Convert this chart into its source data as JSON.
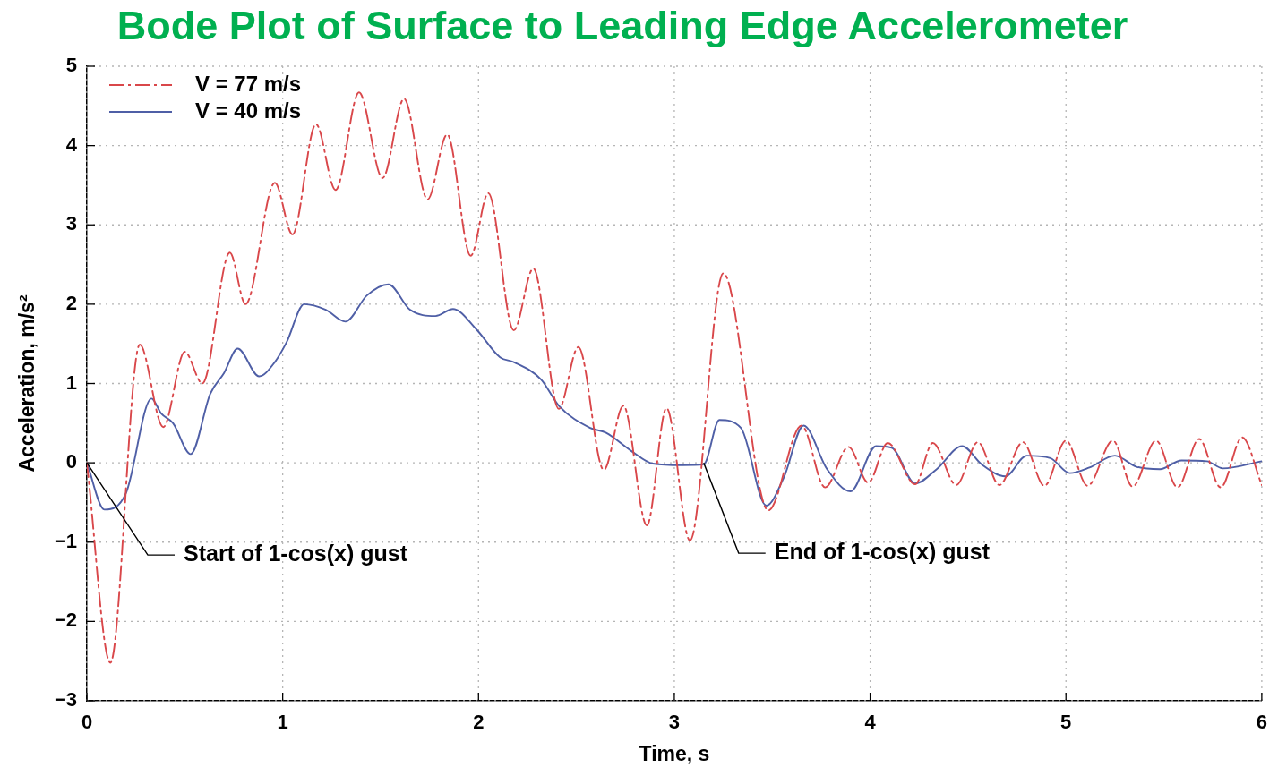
{
  "chart_data": {
    "type": "line",
    "title": "Bode Plot of Surface to Leading Edge Accelerometer",
    "xlabel": "Time, s",
    "ylabel": "Acceleration, m/s²",
    "xlim": [
      0,
      6
    ],
    "xticks": [
      0,
      1,
      2,
      3,
      4,
      5,
      6
    ],
    "ylim": [
      -3,
      5
    ],
    "yticks": [
      {
        "value": -3,
        "label": "−3"
      },
      {
        "value": -2,
        "label": "−2"
      },
      {
        "value": -1,
        "label": "−1"
      },
      0,
      1,
      2,
      3,
      4,
      5
    ],
    "grid": true,
    "legend": "top left",
    "marker": "none",
    "series": [
      {
        "name": "V = 77 m/s",
        "color": "#d9474a",
        "line_style": "dashed",
        "x": [
          0,
          0.12,
          0.27,
          0.39,
          0.5,
          0.59,
          0.73,
          0.81,
          0.96,
          1.05,
          1.17,
          1.27,
          1.39,
          1.51,
          1.62,
          1.74,
          1.84,
          1.96,
          2.05,
          2.18,
          2.28,
          2.41,
          2.51,
          2.64,
          2.74,
          2.86,
          2.96,
          3.08,
          3.25,
          3.48,
          3.65,
          3.77,
          3.89,
          3.99,
          4.09,
          4.23,
          4.32,
          4.44,
          4.55,
          4.66,
          4.78,
          4.89,
          5.0,
          5.11,
          5.24,
          5.34,
          5.46,
          5.57,
          5.68,
          5.79,
          5.9,
          6.0
        ],
        "values": [
          0,
          -2.52,
          1.49,
          0.45,
          1.4,
          1.0,
          2.65,
          2.0,
          3.53,
          2.88,
          4.27,
          3.44,
          4.67,
          3.59,
          4.59,
          3.32,
          4.14,
          2.61,
          3.4,
          1.67,
          2.45,
          0.68,
          1.46,
          -0.09,
          0.72,
          -0.79,
          0.69,
          -0.98,
          2.39,
          -0.6,
          0.47,
          -0.31,
          0.2,
          -0.25,
          0.25,
          -0.27,
          0.25,
          -0.28,
          0.26,
          -0.28,
          0.26,
          -0.29,
          0.28,
          -0.29,
          0.28,
          -0.3,
          0.28,
          -0.31,
          0.3,
          -0.31,
          0.32,
          -0.28
        ]
      },
      {
        "name": "V = 40 m/s",
        "color": "#4f5fa6",
        "line_style": "solid",
        "x": [
          0,
          0.09,
          0.2,
          0.33,
          0.38,
          0.44,
          0.53,
          0.63,
          0.7,
          0.77,
          0.88,
          0.96,
          1.02,
          1.11,
          1.22,
          1.32,
          1.43,
          1.54,
          1.65,
          1.78,
          1.87,
          1.99,
          2.11,
          2.18,
          2.32,
          2.41,
          2.57,
          2.65,
          2.78,
          2.89,
          3.04,
          3.15,
          3.23,
          3.34,
          3.47,
          3.56,
          3.66,
          3.78,
          3.9,
          4.03,
          4.11,
          4.23,
          4.34,
          4.47,
          4.57,
          4.69,
          4.8,
          4.92,
          5.02,
          5.12,
          5.25,
          5.36,
          5.48,
          5.59,
          5.72,
          5.8,
          6.0
        ],
        "values": [
          0,
          -0.59,
          -0.38,
          0.81,
          0.62,
          0.5,
          0.11,
          0.87,
          1.13,
          1.44,
          1.09,
          1.27,
          1.52,
          2.0,
          1.93,
          1.78,
          2.11,
          2.25,
          1.93,
          1.85,
          1.94,
          1.68,
          1.33,
          1.27,
          1.05,
          0.72,
          0.44,
          0.38,
          0.15,
          -0.01,
          -0.03,
          -0.02,
          0.54,
          0.44,
          -0.54,
          -0.18,
          0.47,
          -0.08,
          -0.36,
          0.21,
          0.19,
          -0.26,
          -0.08,
          0.21,
          -0.02,
          -0.17,
          0.09,
          0.06,
          -0.13,
          -0.06,
          0.09,
          -0.05,
          -0.08,
          0.03,
          0.02,
          -0.07,
          0.02
        ]
      }
    ],
    "annotations": [
      {
        "text": "Start of 1-cos(x) gust",
        "x": 0,
        "y": 0
      },
      {
        "text": "End of 1-cos(x) gust",
        "x": 3.15,
        "y": 0
      }
    ]
  }
}
